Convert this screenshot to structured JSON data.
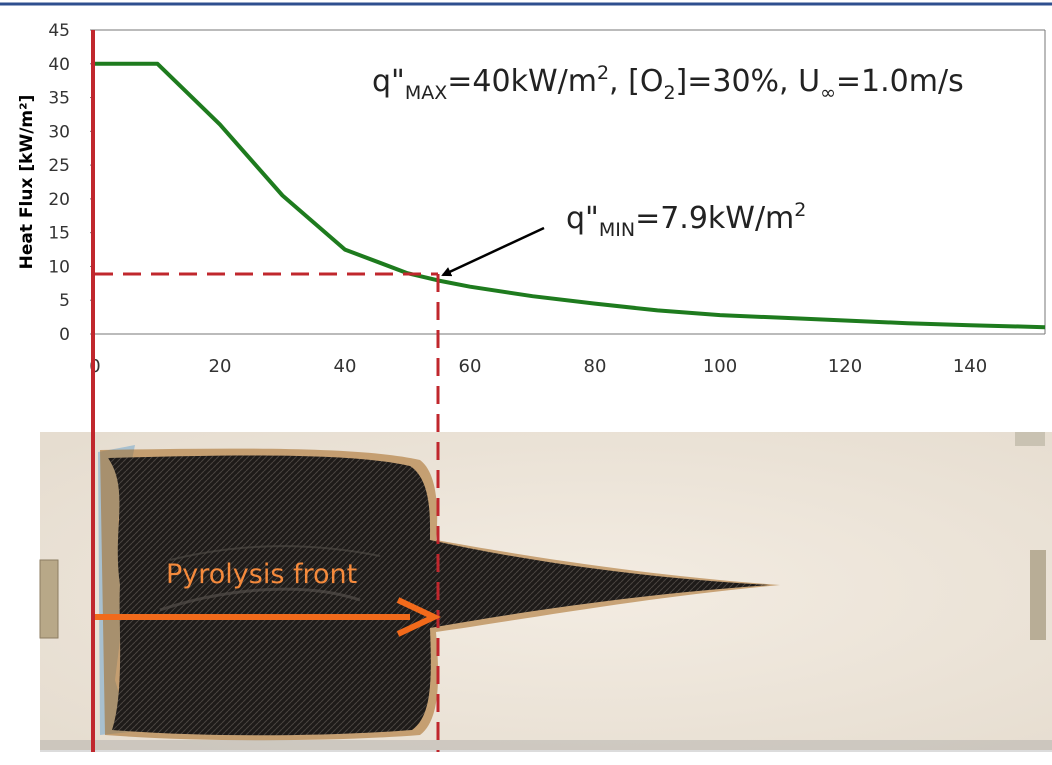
{
  "chart_data": {
    "type": "line",
    "title": "",
    "xlabel": "",
    "ylabel": "Heat Flux [kW/m²]",
    "xlim": [
      0,
      152
    ],
    "ylim": [
      0,
      45
    ],
    "x_ticks": [
      0,
      20,
      40,
      60,
      80,
      100,
      120,
      140
    ],
    "y_ticks": [
      0,
      5,
      10,
      15,
      20,
      25,
      30,
      35,
      40,
      45
    ],
    "grid": false,
    "legend": "none",
    "series": [
      {
        "color": "#1e7b1e",
        "x": [
          0,
          10,
          20,
          30,
          40,
          50,
          55,
          60,
          70,
          80,
          90,
          100,
          110,
          120,
          130,
          140,
          152
        ],
        "y": [
          40,
          40,
          31,
          20.5,
          12.5,
          9,
          7.9,
          7,
          5.6,
          4.5,
          3.5,
          2.8,
          2.4,
          2,
          1.6,
          1.3,
          1.0
        ]
      }
    ],
    "marker": {
      "x": 55,
      "y": 7.9,
      "color": "#c0272d"
    }
  },
  "annotations": {
    "qmax": {
      "main": "q\"",
      "sub": "MAX",
      "after": "=40kW/m",
      "exp": "2",
      "rest": ", [O",
      "o2sub": "2",
      "rest2": "]=30%, U",
      "usub": "∞",
      "end": "=1.0m/s"
    },
    "qmin": {
      "main": "q\"",
      "sub": "MIN",
      "after": "=7.9kW/m",
      "exp": "2"
    },
    "pyrolysis_label": "Pyrolysis front"
  },
  "colors": {
    "frame_border": "#2f4f8f",
    "axis_line_red": "#c0272d",
    "arrow_orange": "#f26a1b",
    "annotation_arrow": "#000000",
    "sample_background": "#efe7dc",
    "char_dark": "#1f1c1a"
  }
}
